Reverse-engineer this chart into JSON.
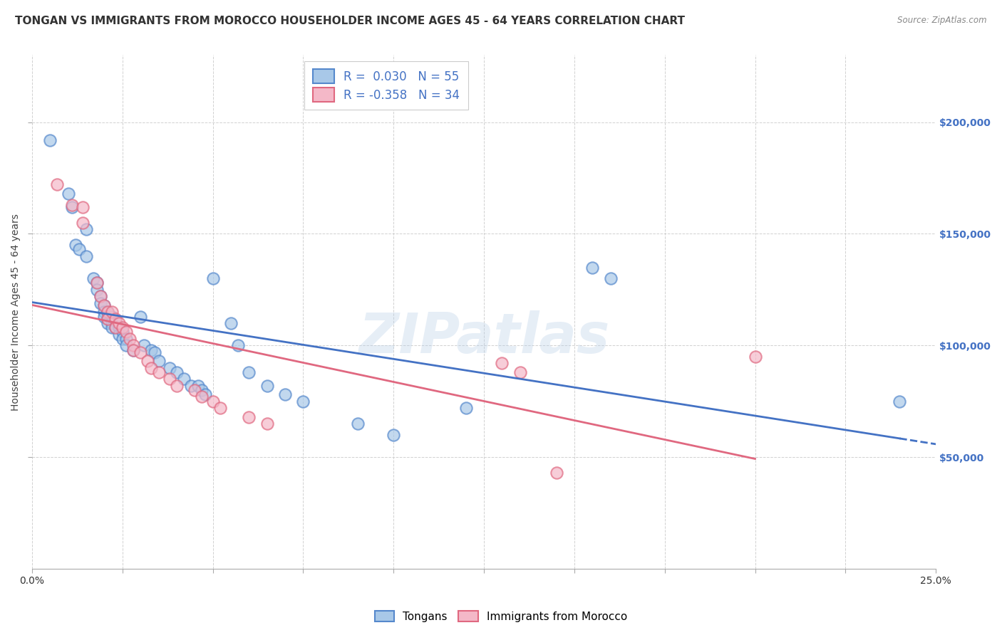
{
  "title": "TONGAN VS IMMIGRANTS FROM MOROCCO HOUSEHOLDER INCOME AGES 45 - 64 YEARS CORRELATION CHART",
  "source": "Source: ZipAtlas.com",
  "ylabel": "Householder Income Ages 45 - 64 years",
  "xlim": [
    0.0,
    0.25
  ],
  "ylim": [
    0,
    230000
  ],
  "xticks": [
    0.0,
    0.025,
    0.05,
    0.075,
    0.1,
    0.125,
    0.15,
    0.175,
    0.2,
    0.225,
    0.25
  ],
  "xticklabels": [
    "0.0%",
    "",
    "",
    "",
    "",
    "",
    "",
    "",
    "",
    "",
    "25.0%"
  ],
  "yticks_right": [
    50000,
    100000,
    150000,
    200000
  ],
  "ytick_labels_right": [
    "$50,000",
    "$100,000",
    "$150,000",
    "$200,000"
  ],
  "tongan_color": "#a8c8e8",
  "morocco_color": "#f4b8c8",
  "tongan_edge_color": "#5588cc",
  "morocco_edge_color": "#e06880",
  "tongan_line_color": "#4472c4",
  "morocco_line_color": "#e06880",
  "R_tongan": 0.03,
  "N_tongan": 55,
  "R_morocco": -0.358,
  "N_morocco": 34,
  "tongan_scatter": [
    [
      0.005,
      192000
    ],
    [
      0.01,
      168000
    ],
    [
      0.011,
      162000
    ],
    [
      0.012,
      145000
    ],
    [
      0.013,
      143000
    ],
    [
      0.015,
      152000
    ],
    [
      0.015,
      140000
    ],
    [
      0.017,
      130000
    ],
    [
      0.018,
      128000
    ],
    [
      0.018,
      125000
    ],
    [
      0.019,
      122000
    ],
    [
      0.019,
      119000
    ],
    [
      0.02,
      118000
    ],
    [
      0.02,
      115000
    ],
    [
      0.02,
      113000
    ],
    [
      0.021,
      115000
    ],
    [
      0.021,
      112000
    ],
    [
      0.021,
      110000
    ],
    [
      0.022,
      113000
    ],
    [
      0.022,
      110000
    ],
    [
      0.022,
      108000
    ],
    [
      0.023,
      111000
    ],
    [
      0.023,
      108000
    ],
    [
      0.024,
      108000
    ],
    [
      0.024,
      105000
    ],
    [
      0.025,
      106000
    ],
    [
      0.025,
      103000
    ],
    [
      0.026,
      103000
    ],
    [
      0.026,
      100000
    ],
    [
      0.028,
      98000
    ],
    [
      0.03,
      113000
    ],
    [
      0.031,
      100000
    ],
    [
      0.033,
      98000
    ],
    [
      0.034,
      97000
    ],
    [
      0.035,
      93000
    ],
    [
      0.038,
      90000
    ],
    [
      0.04,
      88000
    ],
    [
      0.042,
      85000
    ],
    [
      0.044,
      82000
    ],
    [
      0.046,
      82000
    ],
    [
      0.047,
      80000
    ],
    [
      0.048,
      78000
    ],
    [
      0.05,
      130000
    ],
    [
      0.055,
      110000
    ],
    [
      0.057,
      100000
    ],
    [
      0.06,
      88000
    ],
    [
      0.065,
      82000
    ],
    [
      0.07,
      78000
    ],
    [
      0.075,
      75000
    ],
    [
      0.09,
      65000
    ],
    [
      0.1,
      60000
    ],
    [
      0.12,
      72000
    ],
    [
      0.155,
      135000
    ],
    [
      0.16,
      130000
    ],
    [
      0.24,
      75000
    ]
  ],
  "morocco_scatter": [
    [
      0.007,
      172000
    ],
    [
      0.011,
      163000
    ],
    [
      0.014,
      162000
    ],
    [
      0.014,
      155000
    ],
    [
      0.018,
      128000
    ],
    [
      0.019,
      122000
    ],
    [
      0.02,
      118000
    ],
    [
      0.021,
      115000
    ],
    [
      0.021,
      112000
    ],
    [
      0.022,
      115000
    ],
    [
      0.023,
      112000
    ],
    [
      0.023,
      108000
    ],
    [
      0.024,
      110000
    ],
    [
      0.025,
      108000
    ],
    [
      0.026,
      106000
    ],
    [
      0.027,
      103000
    ],
    [
      0.028,
      100000
    ],
    [
      0.028,
      98000
    ],
    [
      0.03,
      97000
    ],
    [
      0.032,
      93000
    ],
    [
      0.033,
      90000
    ],
    [
      0.035,
      88000
    ],
    [
      0.038,
      85000
    ],
    [
      0.04,
      82000
    ],
    [
      0.045,
      80000
    ],
    [
      0.047,
      77000
    ],
    [
      0.05,
      75000
    ],
    [
      0.052,
      72000
    ],
    [
      0.06,
      68000
    ],
    [
      0.065,
      65000
    ],
    [
      0.13,
      92000
    ],
    [
      0.135,
      88000
    ],
    [
      0.145,
      43000
    ],
    [
      0.2,
      95000
    ]
  ],
  "background_color": "#ffffff",
  "grid_color": "#cccccc",
  "watermark": "ZIPatlas",
  "title_fontsize": 11,
  "axis_label_fontsize": 10,
  "tick_fontsize": 10,
  "legend_r1": "R =  0.030",
  "legend_n1": "N = 55",
  "legend_r2": "R = -0.358",
  "legend_n2": "N = 34"
}
